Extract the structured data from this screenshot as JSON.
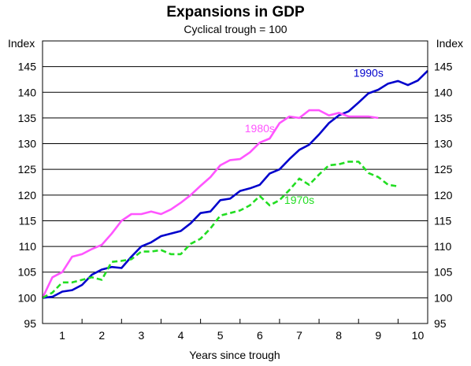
{
  "chart_data": {
    "type": "line",
    "title": "Expansions in GDP",
    "subtitle": "Cyclical trough = 100",
    "y_unit_left": "Index",
    "y_unit_right": "Index",
    "xlabel": "Years since trough",
    "xlim": [
      0.5,
      10.25
    ],
    "ylim": [
      95,
      150
    ],
    "x_ticks": [
      1,
      2,
      3,
      4,
      5,
      6,
      7,
      8,
      9,
      10
    ],
    "y_ticks": [
      95,
      100,
      105,
      110,
      115,
      120,
      125,
      130,
      135,
      140,
      145
    ],
    "grid": true,
    "legend": "none (series labelled directly on chart)",
    "series": [
      {
        "name": "1990s",
        "color": "#0000cc",
        "style": "solid",
        "label_x": 8.75,
        "label_y": 143,
        "x": [
          0.5,
          0.75,
          1.0,
          1.25,
          1.5,
          1.75,
          2.0,
          2.25,
          2.5,
          2.75,
          3.0,
          3.25,
          3.5,
          3.75,
          4.0,
          4.25,
          4.5,
          4.75,
          5.0,
          5.25,
          5.5,
          5.75,
          6.0,
          6.25,
          6.5,
          6.75,
          7.0,
          7.25,
          7.5,
          7.75,
          8.0,
          8.25,
          8.5,
          8.75,
          9.0,
          9.25,
          9.5,
          9.75,
          10.0,
          10.25
        ],
        "values": [
          100.0,
          100.2,
          101.2,
          101.5,
          102.5,
          104.5,
          105.5,
          106.0,
          105.8,
          108.0,
          110.0,
          110.8,
          112.0,
          112.5,
          113.0,
          114.5,
          116.5,
          116.8,
          119.0,
          119.3,
          120.8,
          121.3,
          122.0,
          124.2,
          125.0,
          127.0,
          128.8,
          129.8,
          131.8,
          134.0,
          135.5,
          136.3,
          138.0,
          139.8,
          140.5,
          141.7,
          142.2,
          141.4,
          142.3,
          144.2
        ]
      },
      {
        "name": "1980s",
        "color": "#ff55ff",
        "style": "solid",
        "label_x": 6.0,
        "label_y": 132.2,
        "x": [
          0.5,
          0.75,
          1.0,
          1.25,
          1.5,
          1.75,
          2.0,
          2.25,
          2.5,
          2.75,
          3.0,
          3.25,
          3.5,
          3.75,
          4.0,
          4.25,
          4.5,
          4.75,
          5.0,
          5.25,
          5.5,
          5.75,
          6.0,
          6.25,
          6.5,
          6.75,
          7.0,
          7.25,
          7.5,
          7.75,
          8.0,
          8.25,
          8.5,
          8.75,
          9.0
        ],
        "values": [
          100.0,
          104.0,
          105.0,
          108.0,
          108.5,
          109.5,
          110.3,
          112.5,
          115.0,
          116.3,
          116.3,
          116.8,
          116.3,
          117.2,
          118.5,
          120.0,
          121.8,
          123.5,
          125.8,
          126.8,
          127.0,
          128.3,
          130.2,
          131.0,
          134.0,
          135.3,
          135.0,
          136.5,
          136.5,
          135.5,
          136.0,
          135.3,
          135.3,
          135.3,
          135.0
        ]
      },
      {
        "name": "1970s",
        "color": "#22dd22",
        "style": "dashed",
        "label_x": 7.0,
        "label_y": 118.3,
        "x": [
          0.5,
          0.75,
          1.0,
          1.25,
          1.5,
          1.75,
          2.0,
          2.25,
          2.5,
          2.75,
          3.0,
          3.25,
          3.5,
          3.75,
          4.0,
          4.25,
          4.5,
          4.75,
          5.0,
          5.25,
          5.5,
          5.75,
          6.0,
          6.25,
          6.5,
          6.75,
          7.0,
          7.25,
          7.5,
          7.75,
          8.0,
          8.25,
          8.5,
          8.75,
          9.0,
          9.25,
          9.5
        ],
        "values": [
          100.0,
          101.0,
          103.0,
          103.0,
          103.5,
          104.0,
          103.5,
          107.0,
          107.2,
          107.5,
          109.0,
          109.0,
          109.3,
          108.5,
          108.5,
          110.5,
          111.5,
          113.5,
          116.0,
          116.5,
          117.0,
          118.0,
          119.8,
          118.0,
          119.0,
          121.0,
          123.2,
          122.0,
          124.0,
          125.8,
          126.0,
          126.5,
          126.5,
          124.3,
          123.5,
          122.0,
          121.7
        ]
      }
    ]
  }
}
